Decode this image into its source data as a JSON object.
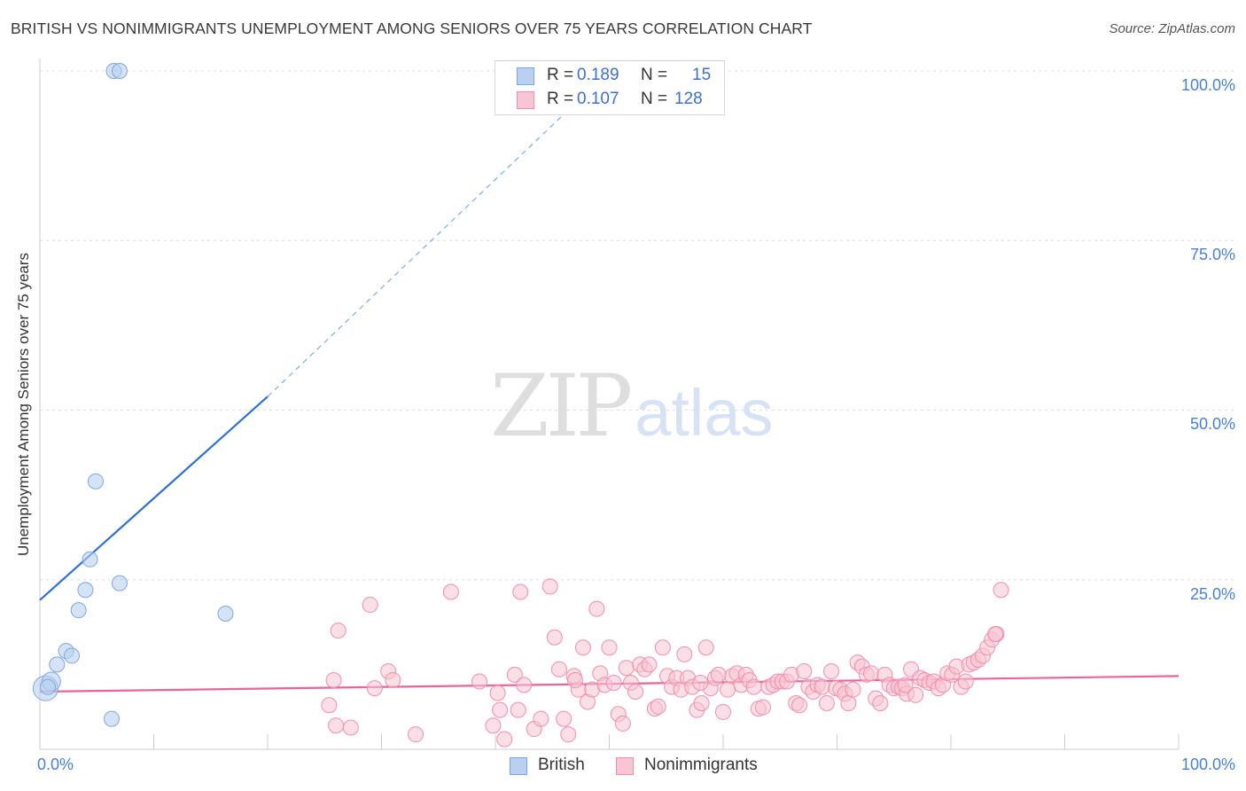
{
  "title": "BRITISH VS NONIMMIGRANTS UNEMPLOYMENT AMONG SENIORS OVER 75 YEARS CORRELATION CHART",
  "source": "Source: ZipAtlas.com",
  "watermark": {
    "zip": "ZIP",
    "atlas": "atlas"
  },
  "colors": {
    "british_fill": "#b9d0f2",
    "british_stroke": "#7fa6e0",
    "british_line": "#2f6fd0",
    "nonimm_fill": "#f7c5d4",
    "nonimm_stroke": "#ef8fae",
    "nonimm_line": "#e8649a",
    "grid": "#dddddd",
    "tick_text": "#4a7fd4"
  },
  "stats": [
    {
      "series": "British",
      "r_label": "R =",
      "r": "0.189",
      "n_label": "N =",
      "n": "15"
    },
    {
      "series": "Nonimmigrants",
      "r_label": "R =",
      "r": "0.107",
      "n_label": "N =",
      "n": "128"
    }
  ],
  "chart_data": {
    "type": "scatter",
    "title": "BRITISH VS NONIMMIGRANTS UNEMPLOYMENT AMONG SENIORS OVER 75 YEARS CORRELATION CHART",
    "xlabel": "",
    "ylabel": "Unemployment Among Seniors over 75 years",
    "xlim": [
      0,
      100
    ],
    "ylim": [
      0,
      100
    ],
    "x_tick_labels": [
      "0.0%",
      "100.0%"
    ],
    "y_ticks": [
      25,
      50,
      75,
      100
    ],
    "y_tick_labels": [
      "25.0%",
      "50.0%",
      "75.0%",
      "100.0%"
    ],
    "legend": [
      "British",
      "Nonimmigrants"
    ],
    "series": [
      {
        "name": "British",
        "points": [
          [
            0.5,
            9.0,
            3
          ],
          [
            1.0,
            10.0,
            2
          ],
          [
            1.5,
            12.5,
            1
          ],
          [
            2.3,
            14.5,
            1
          ],
          [
            2.8,
            13.8,
            1
          ],
          [
            3.4,
            20.5,
            1
          ],
          [
            4.0,
            23.5,
            1
          ],
          [
            4.4,
            28.0,
            1
          ],
          [
            4.9,
            39.5,
            1
          ],
          [
            6.5,
            100.0,
            1
          ],
          [
            7.0,
            100.0,
            1
          ],
          [
            6.3,
            4.5,
            1
          ],
          [
            7.0,
            24.5,
            1
          ],
          [
            16.3,
            20.0,
            1
          ],
          [
            0.7,
            9.2,
            1
          ]
        ],
        "trend": {
          "x1": 0,
          "y1": 22.0,
          "x2": 20.0,
          "y2": 52.0,
          "dash_x2": 50.0,
          "dash_y2": 100.0
        }
      },
      {
        "name": "Nonimmigrants",
        "points": [
          [
            25.4,
            6.5
          ],
          [
            25.8,
            10.2
          ],
          [
            26.0,
            3.5
          ],
          [
            26.2,
            17.5
          ],
          [
            27.3,
            3.2
          ],
          [
            29.0,
            21.3
          ],
          [
            29.4,
            9.0
          ],
          [
            30.6,
            11.5
          ],
          [
            31.0,
            10.2
          ],
          [
            33.0,
            2.2
          ],
          [
            36.1,
            23.2
          ],
          [
            38.6,
            10.0
          ],
          [
            39.8,
            3.5
          ],
          [
            40.2,
            8.3
          ],
          [
            40.4,
            5.8
          ],
          [
            40.8,
            1.5
          ],
          [
            41.7,
            11.0
          ],
          [
            42.0,
            5.8
          ],
          [
            42.2,
            23.2
          ],
          [
            42.5,
            9.5
          ],
          [
            43.4,
            3.0
          ],
          [
            44.0,
            4.5
          ],
          [
            44.8,
            24.0
          ],
          [
            45.2,
            16.5
          ],
          [
            45.6,
            11.8
          ],
          [
            46.0,
            4.5
          ],
          [
            46.4,
            2.2
          ],
          [
            46.9,
            10.8
          ],
          [
            47.3,
            8.8
          ],
          [
            47.7,
            15.0
          ],
          [
            48.1,
            7.0
          ],
          [
            48.5,
            8.8
          ],
          [
            48.9,
            20.7
          ],
          [
            49.2,
            11.2
          ],
          [
            49.6,
            9.5
          ],
          [
            50.0,
            15.0
          ],
          [
            50.4,
            9.8
          ],
          [
            50.8,
            5.2
          ],
          [
            51.2,
            3.8
          ],
          [
            51.5,
            12.0
          ],
          [
            51.9,
            9.8
          ],
          [
            52.3,
            8.5
          ],
          [
            52.7,
            12.5
          ],
          [
            53.1,
            11.8
          ],
          [
            53.5,
            12.5
          ],
          [
            54.0,
            6.0
          ],
          [
            54.3,
            6.3
          ],
          [
            54.7,
            15.0
          ],
          [
            55.1,
            10.8
          ],
          [
            55.5,
            9.2
          ],
          [
            55.9,
            10.5
          ],
          [
            56.3,
            8.8
          ],
          [
            56.6,
            14.0
          ],
          [
            56.9,
            10.5
          ],
          [
            57.3,
            9.2
          ],
          [
            57.7,
            5.8
          ],
          [
            58.1,
            6.8
          ],
          [
            58.5,
            15.0
          ],
          [
            58.9,
            9.0
          ],
          [
            59.3,
            10.5
          ],
          [
            59.6,
            11.0
          ],
          [
            60.0,
            5.5
          ],
          [
            60.4,
            8.8
          ],
          [
            60.8,
            10.8
          ],
          [
            61.2,
            11.2
          ],
          [
            61.6,
            9.5
          ],
          [
            62.0,
            11.0
          ],
          [
            62.3,
            10.2
          ],
          [
            62.7,
            9.2
          ],
          [
            63.1,
            6.0
          ],
          [
            63.5,
            6.2
          ],
          [
            64.0,
            9.2
          ],
          [
            64.4,
            9.5
          ],
          [
            64.8,
            10.0
          ],
          [
            65.2,
            10.0
          ],
          [
            65.6,
            10.0
          ],
          [
            66.0,
            11.0
          ],
          [
            66.4,
            6.8
          ],
          [
            66.7,
            6.5
          ],
          [
            67.1,
            11.5
          ],
          [
            67.5,
            9.2
          ],
          [
            67.9,
            8.5
          ],
          [
            68.3,
            9.5
          ],
          [
            68.7,
            9.2
          ],
          [
            69.1,
            6.8
          ],
          [
            69.5,
            11.5
          ],
          [
            69.9,
            9.0
          ],
          [
            70.3,
            8.8
          ],
          [
            70.7,
            8.2
          ],
          [
            71.0,
            6.8
          ],
          [
            71.4,
            8.8
          ],
          [
            71.8,
            12.8
          ],
          [
            72.2,
            12.2
          ],
          [
            72.6,
            11.0
          ],
          [
            73.0,
            11.2
          ],
          [
            73.4,
            7.5
          ],
          [
            73.8,
            6.8
          ],
          [
            74.2,
            11.0
          ],
          [
            74.6,
            9.5
          ],
          [
            75.0,
            9.0
          ],
          [
            75.4,
            9.2
          ],
          [
            75.7,
            9.0
          ],
          [
            76.1,
            8.2
          ],
          [
            76.5,
            11.8
          ],
          [
            76.9,
            8.0
          ],
          [
            77.3,
            10.5
          ],
          [
            77.7,
            10.2
          ],
          [
            78.1,
            9.8
          ],
          [
            78.5,
            10.0
          ],
          [
            78.9,
            9.0
          ],
          [
            79.3,
            9.5
          ],
          [
            79.7,
            11.2
          ],
          [
            80.1,
            11.0
          ],
          [
            80.5,
            12.2
          ],
          [
            80.9,
            9.2
          ],
          [
            81.3,
            10.0
          ],
          [
            81.6,
            12.5
          ],
          [
            82.0,
            12.8
          ],
          [
            82.4,
            13.2
          ],
          [
            82.8,
            13.8
          ],
          [
            83.2,
            15.0
          ],
          [
            83.6,
            16.2
          ],
          [
            84.0,
            17.0
          ],
          [
            84.4,
            23.5
          ],
          [
            83.9,
            17.0
          ],
          [
            76.0,
            9.5
          ],
          [
            58.0,
            9.8
          ],
          [
            47.0,
            10.2
          ]
        ],
        "trend": {
          "x1": 0,
          "y1": 8.5,
          "x2": 100,
          "y2": 10.8
        }
      }
    ]
  }
}
